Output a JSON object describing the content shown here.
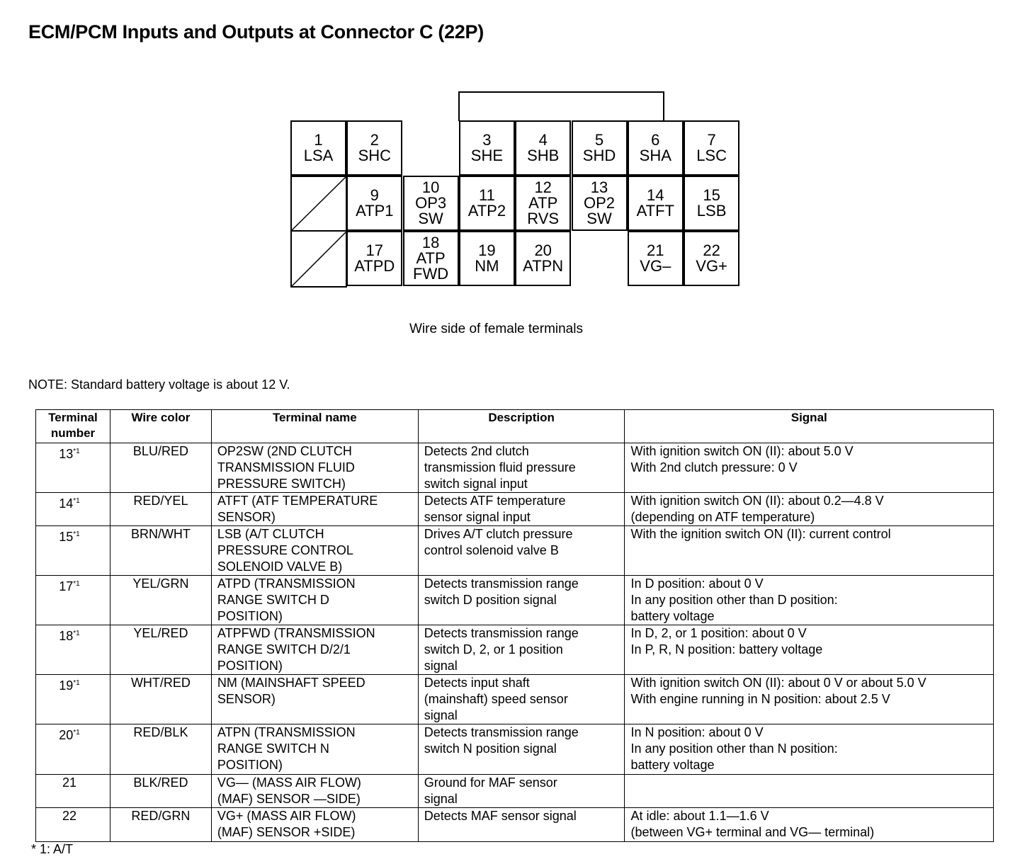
{
  "title": "ECM/PCM Inputs and Outputs at Connector C (22P)",
  "connector": {
    "caption": "Wire side of female terminals",
    "terminals": [
      {
        "n": "1",
        "l": [
          "LSA"
        ]
      },
      {
        "n": "2",
        "l": [
          "SHC"
        ]
      },
      {
        "n": "3",
        "l": [
          "SHE"
        ]
      },
      {
        "n": "4",
        "l": [
          "SHB"
        ]
      },
      {
        "n": "5",
        "l": [
          "SHD"
        ]
      },
      {
        "n": "6",
        "l": [
          "SHA"
        ]
      },
      {
        "n": "7",
        "l": [
          "LSC"
        ]
      },
      {
        "n": "9",
        "l": [
          "ATP1"
        ]
      },
      {
        "n": "10",
        "l": [
          "OP3",
          "SW"
        ]
      },
      {
        "n": "11",
        "l": [
          "ATP2"
        ]
      },
      {
        "n": "12",
        "l": [
          "ATP",
          "RVS"
        ]
      },
      {
        "n": "13",
        "l": [
          "OP2",
          "SW"
        ]
      },
      {
        "n": "14",
        "l": [
          "ATFT"
        ]
      },
      {
        "n": "15",
        "l": [
          "LSB"
        ]
      },
      {
        "n": "17",
        "l": [
          "ATPD"
        ]
      },
      {
        "n": "18",
        "l": [
          "ATP",
          "FWD"
        ]
      },
      {
        "n": "19",
        "l": [
          "NM"
        ]
      },
      {
        "n": "20",
        "l": [
          "ATPN"
        ]
      },
      {
        "n": "21",
        "l": [
          "VG–"
        ]
      },
      {
        "n": "22",
        "l": [
          "VG+"
        ]
      }
    ]
  },
  "note": "NOTE: Standard battery voltage is about 12 V.",
  "table": {
    "headers": [
      "Terminal number",
      "Wire color",
      "Terminal name",
      "Description",
      "Signal"
    ],
    "rows": [
      {
        "num": "13",
        "mark": "*1",
        "color": "BLU/RED",
        "name": [
          "OP2SW (2ND CLUTCH",
          "TRANSMISSION FLUID",
          "PRESSURE SWITCH)"
        ],
        "desc": [
          "Detects 2nd clutch",
          "transmission fluid pressure",
          "switch signal input"
        ],
        "signal": [
          "With ignition switch ON (II): about 5.0 V",
          "With 2nd clutch pressure: 0 V"
        ]
      },
      {
        "num": "14",
        "mark": "*1",
        "color": "RED/YEL",
        "name": [
          "ATFT (ATF TEMPERATURE",
          "SENSOR)"
        ],
        "desc": [
          "Detects ATF temperature",
          "sensor signal input"
        ],
        "signal": [
          "With ignition switch ON (II): about 0.2—4.8 V",
          "(depending on ATF temperature)"
        ]
      },
      {
        "num": "15",
        "mark": "*1",
        "color": "BRN/WHT",
        "name": [
          "LSB (A/T CLUTCH",
          "PRESSURE CONTROL",
          "SOLENOID VALVE B)"
        ],
        "desc": [
          "Drives A/T clutch pressure",
          "control solenoid valve B"
        ],
        "signal": [
          "With the ignition switch ON (II): current control"
        ]
      },
      {
        "num": "17",
        "mark": "*1",
        "color": "YEL/GRN",
        "name": [
          "ATPD (TRANSMISSION",
          "RANGE SWITCH D",
          "POSITION)"
        ],
        "desc": [
          "Detects transmission range",
          "switch D position signal"
        ],
        "signal": [
          "In D position: about 0 V",
          "In any position other than D position:",
          "battery voltage"
        ]
      },
      {
        "num": "18",
        "mark": "*1",
        "color": "YEL/RED",
        "name": [
          "ATPFWD (TRANSMISSION",
          "RANGE SWITCH D/2/1",
          "POSITION)"
        ],
        "desc": [
          "Detects transmission range",
          "switch D, 2, or 1 position",
          "signal"
        ],
        "signal": [
          "In D, 2, or 1 position: about 0 V",
          "In P, R, N position: battery voltage"
        ]
      },
      {
        "num": "19",
        "mark": "*1",
        "color": "WHT/RED",
        "name": [
          "NM (MAINSHAFT SPEED",
          "SENSOR)"
        ],
        "desc": [
          "Detects input shaft",
          "(mainshaft) speed sensor",
          "signal"
        ],
        "signal": [
          "With ignition switch ON (II): about 0 V or about 5.0 V",
          "With engine running in N position: about 2.5 V"
        ]
      },
      {
        "num": "20",
        "mark": "*1",
        "color": "RED/BLK",
        "name": [
          "ATPN (TRANSMISSION",
          "RANGE SWITCH N",
          "POSITION)"
        ],
        "desc": [
          "Detects transmission range",
          "switch N position signal"
        ],
        "signal": [
          "In N position: about 0 V",
          "In any position other than N position:",
          "battery voltage"
        ]
      },
      {
        "num": "21",
        "mark": "",
        "color": "BLK/RED",
        "name": [
          "VG— (MASS AIR FLOW)",
          "(MAF) SENSOR —SIDE)"
        ],
        "desc": [
          "Ground for MAF sensor",
          "signal"
        ],
        "signal": []
      },
      {
        "num": "22",
        "mark": "",
        "color": "RED/GRN",
        "name": [
          "VG+ (MASS AIR FLOW)",
          "(MAF) SENSOR +SIDE)"
        ],
        "desc": [
          "Detects MAF sensor signal"
        ],
        "signal": [
          "At idle: about 1.1—1.6 V",
          "(between VG+ terminal and VG— terminal)"
        ]
      }
    ]
  },
  "footnote": "* 1: A/T"
}
